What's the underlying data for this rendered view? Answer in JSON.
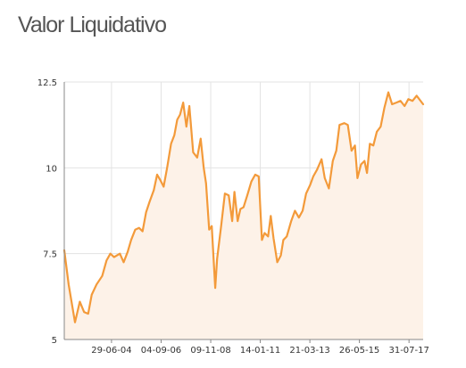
{
  "page": {
    "title": "Valor Liquidativo"
  },
  "colors": {
    "line": "#f39a3a",
    "area_fill": "#fdf2e8",
    "grid": "#e3e3e3",
    "axis": "#888888",
    "title": "#555555"
  },
  "chart_data": {
    "type": "area",
    "title": "",
    "xlabel": "",
    "ylabel": "",
    "grid": true,
    "legend": "none",
    "ylim": [
      5,
      12.5
    ],
    "yticks": [
      {
        "value": 5,
        "label": "5"
      },
      {
        "value": 7.5,
        "label": "7.5"
      },
      {
        "value": 10,
        "label": "10"
      },
      {
        "value": 12.5,
        "label": "12.5"
      }
    ],
    "x_range": [
      "2002-06-01",
      "2018-03-15"
    ],
    "xticks": [
      {
        "date": "2004-06-29",
        "label": "29-06-04"
      },
      {
        "date": "2006-09-04",
        "label": "04-09-06"
      },
      {
        "date": "2008-11-09",
        "label": "09-11-08"
      },
      {
        "date": "2011-01-14",
        "label": "14-01-11"
      },
      {
        "date": "2013-03-21",
        "label": "21-03-13"
      },
      {
        "date": "2015-05-26",
        "label": "26-05-15"
      },
      {
        "date": "2017-07-31",
        "label": "31-07-17"
      }
    ],
    "series": [
      {
        "x": [
          "2002-06-01",
          "2002-08-10",
          "2002-11-20",
          "2003-02-05",
          "2003-04-15",
          "2003-06-20",
          "2003-08-15",
          "2003-11-01",
          "2004-02-01",
          "2004-04-10",
          "2004-06-10",
          "2004-08-10",
          "2004-11-10",
          "2005-01-10",
          "2005-03-15",
          "2005-05-10",
          "2005-07-15",
          "2005-09-15",
          "2005-11-10",
          "2006-01-05",
          "2006-03-01",
          "2006-05-10",
          "2006-07-01",
          "2006-08-20",
          "2006-10-15",
          "2006-12-10",
          "2007-02-10",
          "2007-04-05",
          "2007-05-20",
          "2007-07-05",
          "2007-08-25",
          "2007-10-15",
          "2007-12-01",
          "2008-02-01",
          "2008-04-05",
          "2008-06-01",
          "2008-07-20",
          "2008-08-25",
          "2008-10-15",
          "2008-11-25",
          "2009-01-20",
          "2009-02-20",
          "2009-04-25",
          "2009-06-25",
          "2009-08-25",
          "2009-10-20",
          "2009-11-25",
          "2010-01-15",
          "2010-03-01",
          "2010-04-20",
          "2010-06-20",
          "2010-08-25",
          "2010-10-25",
          "2010-12-20",
          "2011-02-10",
          "2011-03-25",
          "2011-05-20",
          "2011-07-01",
          "2011-08-15",
          "2011-10-15",
          "2011-12-10",
          "2012-01-20",
          "2012-03-15",
          "2012-05-25",
          "2012-07-25",
          "2012-09-25",
          "2012-11-25",
          "2013-01-20",
          "2013-03-25",
          "2013-05-15",
          "2013-07-15",
          "2013-09-25",
          "2013-11-15",
          "2014-01-20",
          "2014-03-25",
          "2014-05-20",
          "2014-07-10",
          "2014-09-25",
          "2014-11-20",
          "2015-01-20",
          "2015-03-15",
          "2015-04-25",
          "2015-06-20",
          "2015-08-15",
          "2015-09-25",
          "2015-11-10",
          "2016-01-05",
          "2016-03-01",
          "2016-05-01",
          "2016-07-01",
          "2016-09-01",
          "2016-11-01",
          "2017-01-10",
          "2017-03-15",
          "2017-05-20",
          "2017-07-20",
          "2017-09-25",
          "2017-12-01",
          "2018-03-15"
        ],
        "values": [
          7.6,
          6.6,
          5.5,
          6.1,
          5.8,
          5.75,
          6.3,
          6.6,
          6.85,
          7.3,
          7.5,
          7.4,
          7.5,
          7.25,
          7.55,
          7.9,
          8.2,
          8.25,
          8.15,
          8.7,
          9.0,
          9.35,
          9.8,
          9.65,
          9.45,
          10.0,
          10.7,
          10.95,
          11.4,
          11.55,
          11.9,
          11.2,
          11.8,
          10.45,
          10.3,
          10.85,
          10.0,
          9.55,
          8.2,
          8.3,
          6.5,
          7.35,
          8.3,
          9.25,
          9.2,
          8.45,
          9.3,
          8.45,
          8.8,
          8.85,
          9.2,
          9.6,
          9.8,
          9.75,
          7.9,
          8.1,
          8.0,
          8.6,
          7.95,
          7.25,
          7.45,
          7.9,
          8.0,
          8.45,
          8.75,
          8.55,
          8.75,
          9.25,
          9.5,
          9.75,
          9.95,
          10.25,
          9.7,
          9.4,
          10.2,
          10.5,
          11.25,
          11.3,
          11.25,
          10.5,
          10.65,
          9.7,
          10.1,
          10.2,
          9.85,
          10.7,
          10.65,
          11.05,
          11.2,
          11.75,
          12.2,
          11.85,
          11.9,
          11.95,
          11.8,
          12.0,
          11.95,
          12.1,
          11.85
        ]
      }
    ]
  }
}
